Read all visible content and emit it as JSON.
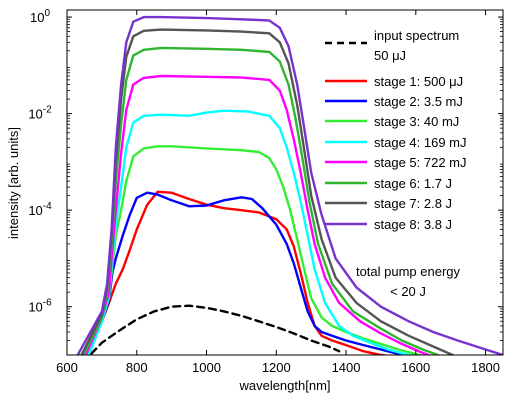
{
  "chart_data": {
    "type": "line",
    "title": "",
    "xlabel": "wavelength[nm]",
    "ylabel": "intensity [arb. units]",
    "xlim": [
      600,
      1850
    ],
    "ylim": [
      1e-07,
      1.4
    ],
    "yscale": "log",
    "grid": false,
    "legend_position": "top-right",
    "x_ticks": [
      600,
      800,
      1000,
      1200,
      1400,
      1600,
      1800
    ],
    "x_tick_labels": [
      "600",
      "800",
      "1000",
      "1200",
      "1400",
      "1600",
      "1800"
    ],
    "y_ticks": [
      1e-06,
      0.0001,
      0.01,
      1
    ],
    "y_tick_labels": [
      {
        "base": "10",
        "exp": "-6"
      },
      {
        "base": "10",
        "exp": "-4"
      },
      {
        "base": "10",
        "exp": "-2"
      },
      {
        "base": "10",
        "exp": "0"
      }
    ],
    "annotation_lines": [
      "total pump energy",
      "< 20 J"
    ],
    "series": [
      {
        "name_lines": [
          "input spectrum",
          "50 μJ"
        ],
        "color": "#000000",
        "dashed": true,
        "x": [
          600,
          660,
          700,
          750,
          800,
          850,
          900,
          950,
          1000,
          1050,
          1100,
          1150,
          1200,
          1250,
          1300,
          1350,
          1380
        ],
        "y": [
          3e-08,
          9e-08,
          1.8e-07,
          3.2e-07,
          5.5e-07,
          8e-07,
          1e-06,
          1.05e-06,
          9.5e-07,
          8e-07,
          6.5e-07,
          5e-07,
          3.8e-07,
          2.8e-07,
          2e-07,
          1.5e-07,
          1.2e-07
        ]
      },
      {
        "name_lines": [
          "stage 1: 500 μJ"
        ],
        "color": "#ff0000",
        "dashed": false,
        "x": [
          640,
          700,
          720,
          740,
          760,
          780,
          800,
          830,
          860,
          900,
          950,
          1000,
          1050,
          1100,
          1150,
          1200,
          1230,
          1250,
          1270,
          1290,
          1310,
          1330,
          1360,
          1400,
          1450,
          1500,
          1550,
          1600
        ],
        "y": [
          4e-08,
          5e-07,
          1.2e-06,
          3e-06,
          6e-06,
          1.5e-05,
          4e-05,
          0.00013,
          0.00024,
          0.00023,
          0.00017,
          0.00013,
          0.00011,
          0.0001,
          9e-05,
          6.5e-05,
          4e-05,
          1.8e-05,
          5e-06,
          1.2e-06,
          4e-07,
          2.5e-07,
          2e-07,
          1.6e-07,
          1.2e-07,
          1e-07,
          9e-08,
          8e-08
        ]
      },
      {
        "name_lines": [
          "stage 2: 3.5 mJ"
        ],
        "color": "#0000ff",
        "dashed": false,
        "x": [
          640,
          700,
          720,
          730,
          740,
          760,
          780,
          800,
          830,
          860,
          900,
          950,
          1000,
          1050,
          1100,
          1130,
          1160,
          1200,
          1230,
          1250,
          1270,
          1290,
          1310,
          1330,
          1360,
          1400,
          1450,
          1500,
          1550,
          1620
        ],
        "y": [
          4e-08,
          5e-07,
          1.3e-06,
          5e-06,
          1e-05,
          3e-05,
          8e-05,
          0.00018,
          0.00023,
          0.00021,
          0.00016,
          0.00012,
          0.000125,
          0.00016,
          0.000185,
          0.00017,
          0.00011,
          5e-05,
          2e-05,
          8e-06,
          2.5e-06,
          8e-07,
          4e-07,
          3e-07,
          2.5e-07,
          2e-07,
          1.6e-07,
          1.3e-07,
          1.05e-07,
          9e-08
        ]
      },
      {
        "name_lines": [
          "stage 3: 40 mJ"
        ],
        "color": "#33ee33",
        "dashed": false,
        "x": [
          640,
          700,
          720,
          730,
          740,
          755,
          770,
          790,
          820,
          860,
          900,
          1000,
          1100,
          1150,
          1180,
          1200,
          1220,
          1240,
          1260,
          1280,
          1300,
          1330,
          1360,
          1400,
          1450,
          1500,
          1550,
          1600,
          1660
        ],
        "y": [
          4e-08,
          5e-07,
          1.5e-06,
          7e-06,
          3e-05,
          0.0001,
          0.0004,
          0.0013,
          0.0019,
          0.0021,
          0.0021,
          0.0019,
          0.00175,
          0.0016,
          0.0012,
          0.0007,
          0.0003,
          0.0001,
          2.5e-05,
          6e-06,
          1.5e-06,
          6e-07,
          4e-07,
          3e-07,
          2.2e-07,
          1.7e-07,
          1.3e-07,
          1.05e-07,
          8e-08
        ]
      },
      {
        "name_lines": [
          "stage 4: 169 mJ"
        ],
        "color": "#00ffff",
        "dashed": false,
        "x": [
          640,
          700,
          720,
          730,
          740,
          755,
          770,
          790,
          820,
          870,
          950,
          1000,
          1050,
          1120,
          1180,
          1210,
          1230,
          1250,
          1270,
          1290,
          1310,
          1340,
          1380,
          1420,
          1470,
          1520,
          1580,
          1650,
          1700
        ],
        "y": [
          4e-08,
          5e-07,
          1.6e-06,
          1e-05,
          5e-05,
          0.0003,
          0.002,
          0.0065,
          0.009,
          0.0095,
          0.009,
          0.0105,
          0.0115,
          0.011,
          0.009,
          0.005,
          0.002,
          0.0006,
          0.00015,
          3e-05,
          6e-06,
          1.2e-06,
          4e-07,
          2.5e-07,
          1.8e-07,
          1.3e-07,
          1e-07,
          8e-08,
          6e-08
        ]
      },
      {
        "name_lines": [
          "stage 5: 722 mJ"
        ],
        "color": "#ff00ff",
        "dashed": false,
        "x": [
          630,
          700,
          720,
          730,
          740,
          755,
          770,
          790,
          820,
          870,
          1000,
          1100,
          1180,
          1210,
          1230,
          1250,
          1270,
          1290,
          1310,
          1340,
          1380,
          1440,
          1500,
          1560,
          1620,
          1700
        ],
        "y": [
          4e-08,
          6e-07,
          2e-06,
          1.5e-05,
          0.0001,
          0.0015,
          0.012,
          0.04,
          0.055,
          0.06,
          0.058,
          0.056,
          0.05,
          0.03,
          0.012,
          0.003,
          0.0006,
          0.0001,
          2e-05,
          4e-06,
          1.2e-06,
          5e-07,
          2.8e-07,
          1.7e-07,
          1.1e-07,
          7e-08
        ]
      },
      {
        "name_lines": [
          "stage 6: 1.7 J"
        ],
        "color": "#2fb52f",
        "dashed": false,
        "x": [
          620,
          700,
          715,
          728,
          740,
          755,
          770,
          790,
          820,
          870,
          1000,
          1100,
          1180,
          1210,
          1235,
          1255,
          1275,
          1295,
          1320,
          1360,
          1420,
          1500,
          1560,
          1620,
          1700,
          1760
        ],
        "y": [
          4e-08,
          6e-07,
          2e-06,
          2e-05,
          0.0004,
          0.006,
          0.05,
          0.16,
          0.21,
          0.23,
          0.22,
          0.21,
          0.19,
          0.12,
          0.04,
          0.008,
          0.0012,
          0.00015,
          2e-05,
          3e-06,
          8e-07,
          3.5e-07,
          2e-07,
          1.3e-07,
          8e-08,
          6e-08
        ]
      },
      {
        "name_lines": [
          "stage 7: 2.8 J"
        ],
        "color": "#555555",
        "dashed": false,
        "x": [
          610,
          700,
          715,
          728,
          740,
          755,
          770,
          790,
          820,
          870,
          1000,
          1100,
          1180,
          1210,
          1235,
          1260,
          1280,
          1300,
          1330,
          1370,
          1430,
          1500,
          1580,
          1650,
          1720,
          1800
        ],
        "y": [
          3.5e-08,
          7e-07,
          2.5e-06,
          3e-05,
          0.001,
          0.02,
          0.15,
          0.4,
          0.52,
          0.55,
          0.53,
          0.5,
          0.46,
          0.3,
          0.11,
          0.015,
          0.0018,
          0.0002,
          2.5e-05,
          4e-06,
          1.2e-06,
          5e-07,
          2.5e-07,
          1.5e-07,
          9e-08,
          6e-08
        ]
      },
      {
        "name_lines": [
          "stage 8: 3.8 J"
        ],
        "color": "#7733cc",
        "dashed": false,
        "x": [
          600,
          700,
          715,
          728,
          740,
          755,
          770,
          790,
          820,
          870,
          1000,
          1100,
          1180,
          1210,
          1235,
          1260,
          1280,
          1300,
          1330,
          1370,
          1430,
          1500,
          1580,
          1650,
          1720,
          1800,
          1850
        ],
        "y": [
          4e-08,
          8e-07,
          3e-06,
          4e-05,
          0.002,
          0.04,
          0.3,
          0.8,
          1.0,
          1.0,
          0.95,
          0.9,
          0.85,
          0.6,
          0.25,
          0.04,
          0.005,
          0.0006,
          8e-05,
          1e-05,
          2.5e-06,
          1e-06,
          5e-07,
          3e-07,
          2e-07,
          1.3e-07,
          1e-07
        ]
      }
    ]
  }
}
